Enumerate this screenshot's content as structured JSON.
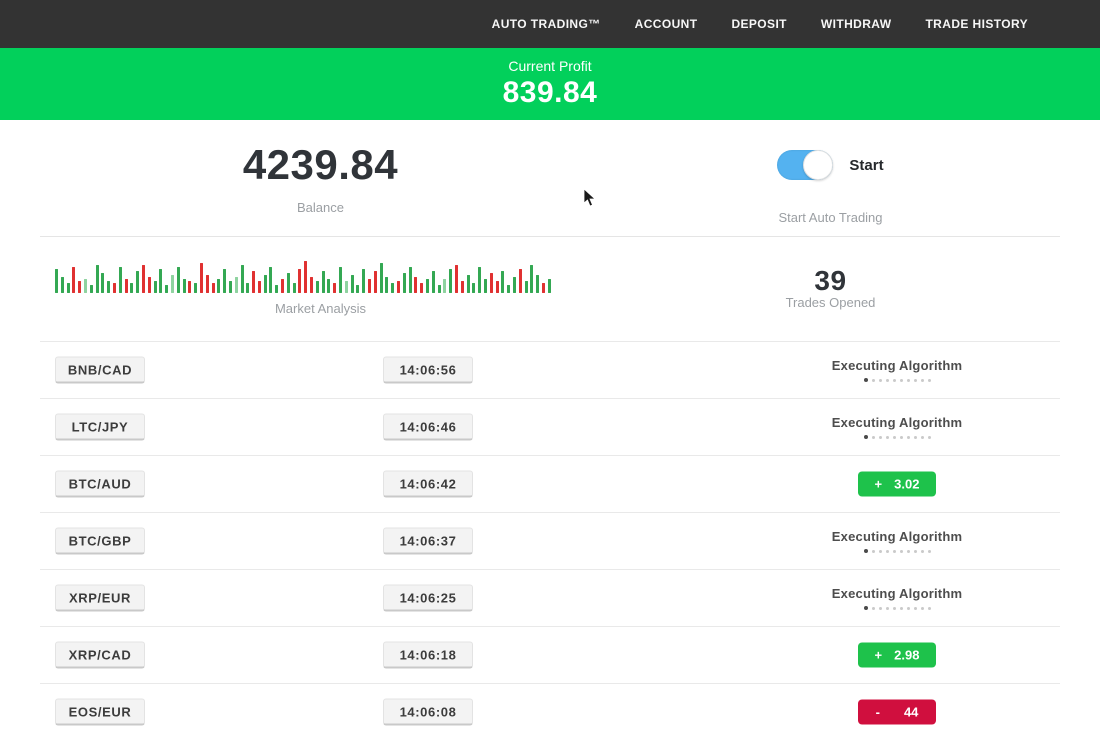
{
  "nav": {
    "items": [
      {
        "label": "AUTO TRADING™"
      },
      {
        "label": "ACCOUNT"
      },
      {
        "label": "DEPOSIT"
      },
      {
        "label": "WITHDRAW"
      },
      {
        "label": "TRADE HISTORY"
      }
    ]
  },
  "banner": {
    "label": "Current Profit",
    "value": "839.84"
  },
  "overview": {
    "balance_value": "4239.84",
    "balance_label": "Balance",
    "toggle_label": "Start",
    "toggle_on": true,
    "auto_label": "Start Auto Trading",
    "trades_value": "39",
    "trades_label": "Trades Opened",
    "market_label": "Market Analysis"
  },
  "labels": {
    "executing": "Executing Algorithm",
    "progress_dots": 10
  },
  "trades": [
    {
      "pair": "BNB/CAD",
      "time": "14:06:56",
      "status": "executing"
    },
    {
      "pair": "LTC/JPY",
      "time": "14:06:46",
      "status": "executing"
    },
    {
      "pair": "BTC/AUD",
      "time": "14:06:42",
      "status": "profit",
      "sign": "+",
      "value": "3.02"
    },
    {
      "pair": "BTC/GBP",
      "time": "14:06:37",
      "status": "executing"
    },
    {
      "pair": "XRP/EUR",
      "time": "14:06:25",
      "status": "executing"
    },
    {
      "pair": "XRP/CAD",
      "time": "14:06:18",
      "status": "profit",
      "sign": "+",
      "value": "2.98"
    },
    {
      "pair": "EOS/EUR",
      "time": "14:06:08",
      "status": "loss",
      "sign": "-",
      "value": "44"
    }
  ],
  "chart_data": {
    "type": "bar",
    "title": "Market Analysis",
    "note": "mini market-activity bar strip; tokens are colorCode+heightPx",
    "bars": "g24 g16 g10 r26 r12 lg14 g8 g28 g20 g12 r10 g26 r14 g10 g22 r28 r16 g12 g24 g8 lg18 g26 g14 r12 g10 r30 r18 r10 g14 g24 g12 lg16 g28 g10 r22 r12 g18 g26 g8 r14 g20 g10 r24 r32 r16 g12 g22 g14 r10 g26 lg12 g18 g8 g24 r14 r22 g30 g16 g10 r12 g20 g26 r16 r10 g14 g22 g8 lg14 g24 r28 r12 g18 g10 g26 g14 r20 r12 g22 g8 g16 r24 g12 g28 g18 r10 g14",
    "bar_colors": {
      "g": "#34a853",
      "r": "#e03131",
      "lg": "#8fd3a0",
      "lr": "#f2a0a0"
    }
  },
  "colors": {
    "banner_green": "#02d05b",
    "badge_green": "#1ec24b",
    "badge_red": "#d00f3e",
    "toggle_blue": "#54b2f0",
    "nav_bg": "#333333"
  }
}
